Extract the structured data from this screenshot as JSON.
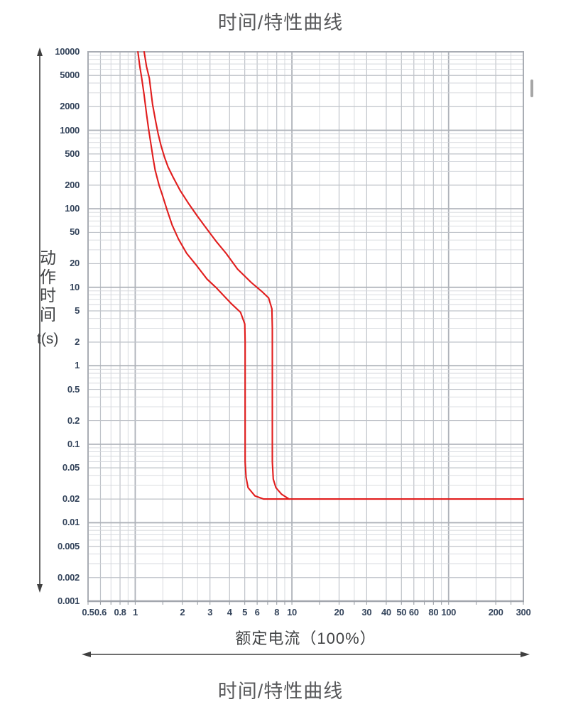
{
  "title_top": "时间/特性曲线",
  "caption_bottom": "时间/特性曲线",
  "ylabel": {
    "chars": [
      "动",
      "作",
      "时",
      "间"
    ],
    "unit": "t(s)"
  },
  "colors": {
    "curve_red": "#e11d1d",
    "grid_gray": "#c6cacf",
    "tick_text": "#35455c",
    "title_text": "#58595b"
  },
  "chart_data": {
    "type": "line",
    "title": "时间/特性曲线",
    "xlabel": "额定电流（100%）",
    "ylabel": "动作时间 t(s)",
    "x_scale": "log",
    "y_scale": "log",
    "xlim": [
      0.5,
      300
    ],
    "ylim": [
      0.001,
      10000
    ],
    "grid": true,
    "legend": "none",
    "x_ticks": [
      "0.5",
      "0.6",
      "0.8",
      "1",
      "2",
      "3",
      "4",
      "5",
      "6",
      "8",
      "10",
      "20",
      "30",
      "40",
      "50",
      "60",
      "80",
      "100",
      "200",
      "300"
    ],
    "y_ticks": [
      "10000",
      "5000",
      "2000",
      "1000",
      "500",
      "200",
      "100",
      "50",
      "20",
      "10",
      "5",
      "2",
      "1",
      "0.5",
      "0.2",
      "0.1",
      "0.05",
      "0.02",
      "0.01",
      "0.005",
      "0.002",
      "0.001"
    ],
    "series": [
      {
        "name": "trip-curve-min",
        "color": "#e11d1d",
        "points": [
          [
            1.04,
            10000
          ],
          [
            1.07,
            6500
          ],
          [
            1.1,
            4600
          ],
          [
            1.14,
            2800
          ],
          [
            1.18,
            1620
          ],
          [
            1.22,
            1000
          ],
          [
            1.26,
            660
          ],
          [
            1.3,
            440
          ],
          [
            1.34,
            310
          ],
          [
            1.42,
            200
          ],
          [
            1.49,
            150
          ],
          [
            1.6,
            95
          ],
          [
            1.72,
            62
          ],
          [
            1.89,
            41
          ],
          [
            2.13,
            27
          ],
          [
            2.44,
            19.4
          ],
          [
            2.87,
            12.7
          ],
          [
            3.3,
            9.8
          ],
          [
            3.55,
            8.4
          ],
          [
            4.1,
            6.2
          ],
          [
            4.7,
            4.8
          ],
          [
            5.0,
            3.4
          ],
          [
            5.03,
            2.0
          ],
          [
            5.03,
            0.06
          ],
          [
            5.1,
            0.038
          ],
          [
            5.25,
            0.028
          ],
          [
            5.8,
            0.022
          ],
          [
            6.6,
            0.02
          ],
          [
            300,
            0.02
          ]
        ]
      },
      {
        "name": "trip-curve-max",
        "color": "#e11d1d",
        "points": [
          [
            1.14,
            10000
          ],
          [
            1.18,
            6500
          ],
          [
            1.23,
            4600
          ],
          [
            1.29,
            2150
          ],
          [
            1.35,
            1300
          ],
          [
            1.4,
            900
          ],
          [
            1.46,
            640
          ],
          [
            1.54,
            450
          ],
          [
            1.62,
            340
          ],
          [
            1.75,
            250
          ],
          [
            1.94,
            170
          ],
          [
            2.2,
            115
          ],
          [
            2.5,
            80
          ],
          [
            2.87,
            55
          ],
          [
            3.3,
            38
          ],
          [
            3.8,
            27
          ],
          [
            4.5,
            17
          ],
          [
            5.5,
            11.5
          ],
          [
            6.4,
            8.9
          ],
          [
            7.1,
            7.3
          ],
          [
            7.45,
            5.3
          ],
          [
            7.5,
            3.0
          ],
          [
            7.5,
            0.06
          ],
          [
            7.6,
            0.036
          ],
          [
            7.9,
            0.028
          ],
          [
            8.6,
            0.023
          ],
          [
            9.6,
            0.02
          ]
        ]
      }
    ]
  }
}
